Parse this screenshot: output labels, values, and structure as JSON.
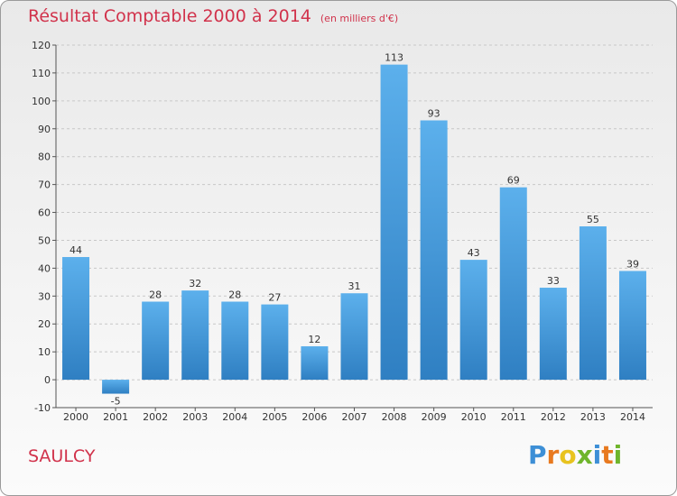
{
  "chart_data": {
    "type": "bar",
    "title": "Résultat Comptable 2000 à 2014",
    "unit_label": "(en milliers d'€)",
    "categories": [
      "2000",
      "2001",
      "2002",
      "2003",
      "2004",
      "2005",
      "2006",
      "2007",
      "2008",
      "2009",
      "2010",
      "2011",
      "2012",
      "2013",
      "2014"
    ],
    "values": [
      44,
      -5,
      28,
      32,
      28,
      27,
      12,
      31,
      113,
      93,
      43,
      69,
      33,
      55,
      39
    ],
    "ylim": [
      -10,
      120
    ],
    "yticks": [
      -10,
      0,
      10,
      20,
      30,
      40,
      50,
      60,
      70,
      80,
      90,
      100,
      110,
      120
    ],
    "grid": true,
    "bar_color": "#4a9fde",
    "xlabel": "",
    "ylabel": ""
  },
  "location": "SAULCY",
  "brand": {
    "letters": [
      "P",
      "r",
      "o",
      "x",
      "i",
      "t",
      "i"
    ],
    "colors": [
      "#3d8fd6",
      "#e8791f",
      "#e8c31f",
      "#6fb52c",
      "#3d8fd6",
      "#e8791f",
      "#6fb52c"
    ]
  },
  "colors": {
    "title": "#d1324b",
    "axis": "#333333"
  }
}
